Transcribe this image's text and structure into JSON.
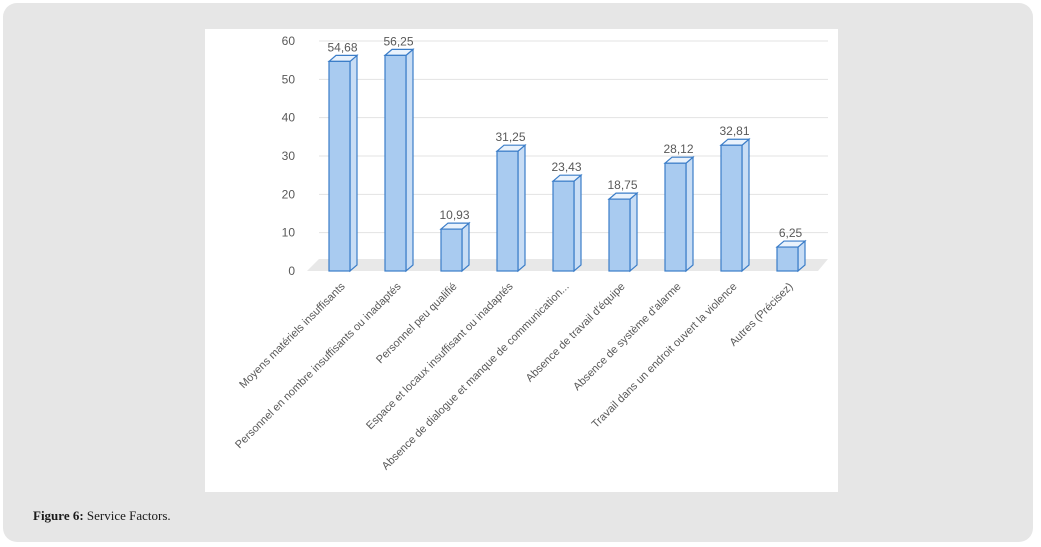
{
  "caption": {
    "label": "Figure 6:",
    "text": "Service Factors."
  },
  "chart_data": {
    "type": "bar",
    "style": "3d-column",
    "categories": [
      "Moyens matériels insuffisants",
      "Personnel en nombre insuffisants ou inadaptés",
      "Personnel peu qualifié",
      "Espace et locaux insuffisant ou inadaptés",
      "Absence de dialogue et manque de communication...",
      "Absence de travail d'équipe",
      "Absence de système d'alarme",
      "Travail dans un endroit ouvert  la violence",
      "Autres (Précisez)"
    ],
    "values": [
      54.68,
      56.25,
      10.93,
      31.25,
      23.43,
      18.75,
      28.12,
      32.81,
      6.25
    ],
    "value_labels": [
      "54,68",
      "56,25",
      "10,93",
      "31,25",
      "23,43",
      "18,75",
      "28,12",
      "32,81",
      "6,25"
    ],
    "yticks": [
      0,
      10,
      20,
      30,
      40,
      50,
      60
    ],
    "ylim": [
      0,
      60
    ],
    "grid": true,
    "legend": "none",
    "colors": {
      "bar_fill": "#a9cbf0",
      "bar_side": "#c8ddf5",
      "bar_edge": "#3b7dc8",
      "grid": "#e3e3e3",
      "floor": "#e8e8e8",
      "axis_text": "#595959"
    }
  }
}
